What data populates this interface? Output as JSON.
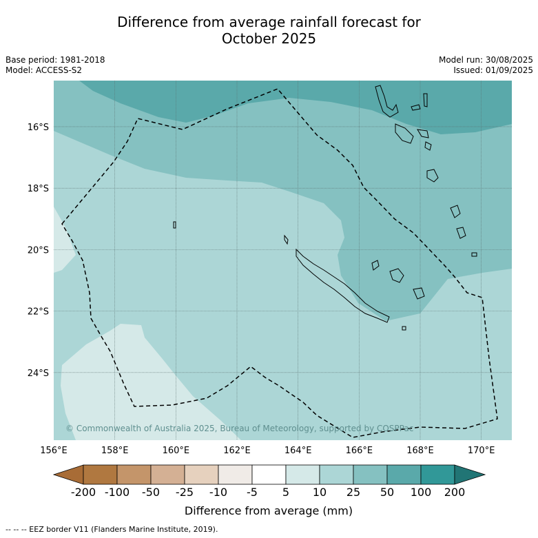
{
  "title": {
    "line1": "Difference from average rainfall forecast for",
    "line2": "October 2025"
  },
  "info_left": {
    "base_period": "Base period: 1981-2018",
    "model": "Model: ACCESS-S2"
  },
  "info_right": {
    "model_run": "Model run: 30/08/2025",
    "issued": "Issued: 01/09/2025"
  },
  "map": {
    "lon_range": [
      156,
      171
    ],
    "lat_range": [
      -26.2,
      -14.5
    ],
    "lon_ticks": [
      "156°E",
      "158°E",
      "160°E",
      "162°E",
      "164°E",
      "166°E",
      "168°E",
      "170°E"
    ],
    "lat_ticks": [
      "16°S",
      "18°S",
      "20°S",
      "22°S",
      "24°S"
    ],
    "copyright": "© Commonwealth of Australia 2025, Bureau of Meteorology, supported by COSPPac",
    "gridlines": true
  },
  "colorbar": {
    "label": "Difference from average (mm)",
    "ticks": [
      "-200",
      "-100",
      "-50",
      "-25",
      "-10",
      "-5",
      "5",
      "10",
      "25",
      "50",
      "100",
      "200"
    ],
    "colors": [
      "#a86c36",
      "#b07840",
      "#c4956a",
      "#d4b094",
      "#e6d1be",
      "#f0ebe7",
      "#ffffff",
      "#d5e9e8",
      "#acd6d6",
      "#85c1c1",
      "#5aa9aa",
      "#319898",
      "#217575"
    ]
  },
  "footer": "--  --  -- EEZ border V11 (Flanders Marine Institute, 2019)."
}
